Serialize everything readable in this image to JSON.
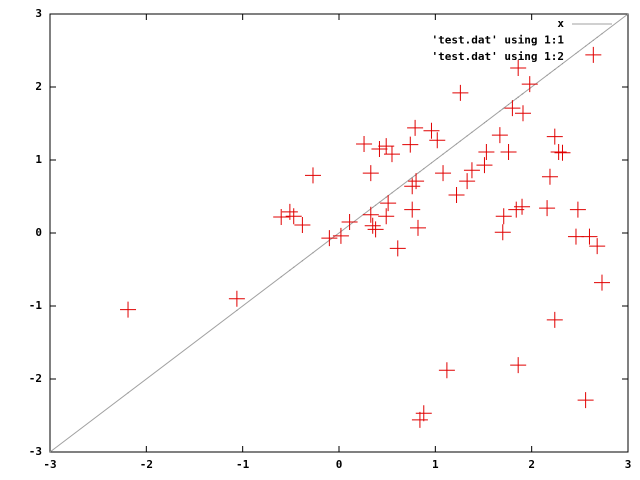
{
  "chart_data": {
    "type": "scatter",
    "xlim": [
      -3,
      3
    ],
    "ylim": [
      -3,
      3
    ],
    "xticks": [
      -3,
      -2,
      -1,
      0,
      1,
      2,
      3
    ],
    "yticks": [
      -3,
      -2,
      -1,
      0,
      1,
      2,
      3
    ],
    "grid": false,
    "legend_position": "top-right",
    "series": [
      {
        "name": "x",
        "color": "#a0a0a0",
        "style": "line",
        "x": [
          -3,
          3
        ],
        "values": [
          -3,
          3
        ]
      },
      {
        "name": "'test.dat' using 1:1",
        "color": "#909090",
        "style": "dot",
        "x": [
          -2.19,
          -1.06,
          -0.27,
          -0.6,
          -0.51,
          -0.47,
          -0.38,
          -0.1,
          0.02,
          0.11,
          0.26,
          0.33,
          0.33,
          0.35,
          0.38,
          0.42,
          0.49,
          0.51,
          0.49,
          0.55,
          0.61,
          0.74,
          0.79,
          0.76,
          0.76,
          0.8,
          0.82,
          0.84,
          0.88,
          0.96,
          1.02,
          1.08,
          1.12,
          1.22,
          1.26,
          1.33,
          1.38,
          1.51,
          1.53,
          1.67,
          1.7,
          1.71,
          1.76,
          1.8,
          1.84,
          1.86,
          1.86,
          1.9,
          1.91,
          1.98,
          2.16,
          2.19,
          2.24,
          2.24,
          2.28,
          2.32,
          2.48,
          2.46,
          2.56,
          2.6,
          2.64,
          2.68,
          2.73
        ],
        "values": [
          -2.19,
          -1.06,
          -0.27,
          -0.6,
          -0.51,
          -0.47,
          -0.38,
          -0.1,
          0.02,
          0.11,
          0.26,
          0.33,
          0.33,
          0.35,
          0.38,
          0.42,
          0.49,
          0.51,
          0.49,
          0.55,
          0.61,
          0.74,
          0.79,
          0.76,
          0.76,
          0.8,
          0.82,
          0.84,
          0.88,
          0.96,
          1.02,
          1.08,
          1.12,
          1.22,
          1.26,
          1.33,
          1.38,
          1.51,
          1.53,
          1.67,
          1.7,
          1.71,
          1.76,
          1.8,
          1.84,
          1.86,
          1.86,
          1.9,
          1.91,
          1.98,
          2.16,
          2.19,
          2.24,
          2.24,
          2.28,
          2.32,
          2.48,
          2.46,
          2.56,
          2.6,
          2.64,
          2.68,
          2.73
        ]
      },
      {
        "name": "'test.dat' using 1:2",
        "color": "#e00000",
        "style": "cross",
        "x": [
          -2.19,
          -1.06,
          -0.27,
          -0.6,
          -0.51,
          -0.47,
          -0.38,
          -0.1,
          0.02,
          0.11,
          0.26,
          0.33,
          0.33,
          0.35,
          0.38,
          0.42,
          0.49,
          0.51,
          0.49,
          0.55,
          0.61,
          0.74,
          0.79,
          0.76,
          0.76,
          0.8,
          0.82,
          0.84,
          0.88,
          0.96,
          1.02,
          1.08,
          1.12,
          1.22,
          1.26,
          1.33,
          1.38,
          1.51,
          1.53,
          1.67,
          1.7,
          1.71,
          1.76,
          1.8,
          1.84,
          1.86,
          1.86,
          1.9,
          1.91,
          1.98,
          2.16,
          2.19,
          2.24,
          2.24,
          2.28,
          2.32,
          2.48,
          2.46,
          2.56,
          2.6,
          2.64,
          2.68,
          2.73
        ],
        "values": [
          -1.05,
          -0.9,
          0.79,
          0.22,
          0.29,
          0.23,
          0.11,
          -0.07,
          -0.04,
          0.15,
          1.22,
          0.82,
          0.25,
          0.1,
          0.05,
          1.15,
          1.19,
          0.41,
          0.23,
          1.08,
          -0.21,
          1.21,
          1.44,
          0.32,
          0.64,
          0.71,
          0.07,
          -2.56,
          -2.47,
          1.4,
          1.27,
          0.82,
          -1.88,
          0.52,
          1.92,
          0.71,
          0.86,
          0.93,
          1.11,
          1.34,
          0.01,
          0.23,
          1.11,
          1.71,
          0.32,
          2.26,
          -1.81,
          0.36,
          1.64,
          2.04,
          0.34,
          0.77,
          1.32,
          -1.19,
          1.11,
          1.1,
          0.32,
          -0.05,
          -2.29,
          -0.05,
          2.44,
          -0.18,
          -0.68
        ]
      }
    ]
  }
}
